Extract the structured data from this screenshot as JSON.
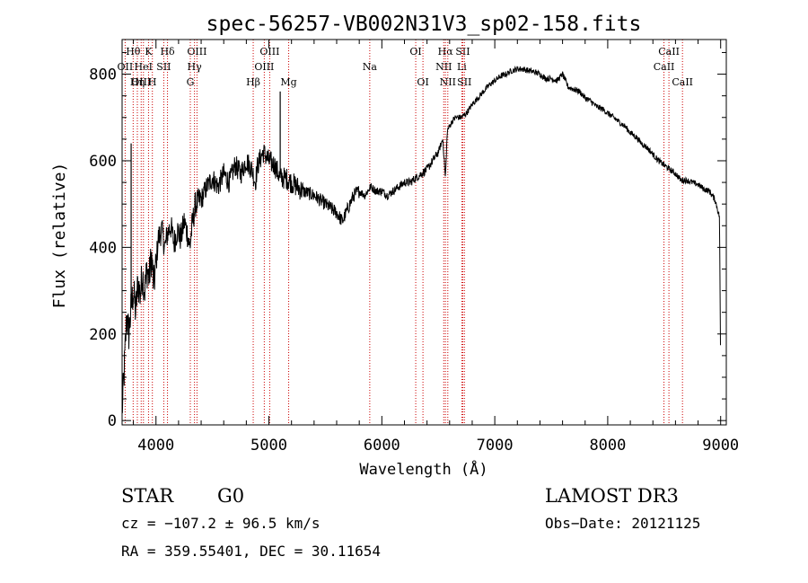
{
  "chart_data": {
    "type": "line",
    "title": "spec-56257-VB002N31V3_sp02-158.fits",
    "xlabel": "Wavelength (Å)",
    "ylabel": "Flux (relative)",
    "xlim": [
      3700,
      9050
    ],
    "ylim": [
      -10,
      880
    ],
    "x_ticks": [
      4000,
      5000,
      6000,
      7000,
      8000,
      9000
    ],
    "y_ticks": [
      0,
      200,
      400,
      600,
      800
    ],
    "grid": false,
    "line_color": "#000000",
    "marker_color": "#cc0000",
    "series": [
      {
        "name": "Flux",
        "points": [
          [
            3700,
            20
          ],
          [
            3720,
            120
          ],
          [
            3740,
            240
          ],
          [
            3760,
            200
          ],
          [
            3780,
            260
          ],
          [
            3800,
            300
          ],
          [
            3820,
            250
          ],
          [
            3840,
            320
          ],
          [
            3860,
            290
          ],
          [
            3880,
            340
          ],
          [
            3900,
            300
          ],
          [
            3920,
            350
          ],
          [
            3940,
            330
          ],
          [
            3960,
            380
          ],
          [
            3980,
            310
          ],
          [
            4000,
            360
          ],
          [
            4020,
            420
          ],
          [
            4050,
            440
          ],
          [
            4080,
            400
          ],
          [
            4100,
            430
          ],
          [
            4130,
            450
          ],
          [
            4160,
            410
          ],
          [
            4190,
            440
          ],
          [
            4220,
            420
          ],
          [
            4250,
            460
          ],
          [
            4280,
            430
          ],
          [
            4300,
            400
          ],
          [
            4320,
            450
          ],
          [
            4350,
            500
          ],
          [
            4400,
            510
          ],
          [
            4450,
            540
          ],
          [
            4500,
            560
          ],
          [
            4550,
            540
          ],
          [
            4600,
            570
          ],
          [
            4650,
            550
          ],
          [
            4700,
            590
          ],
          [
            4750,
            570
          ],
          [
            4800,
            600
          ],
          [
            4850,
            580
          ],
          [
            4880,
            550
          ],
          [
            4900,
            590
          ],
          [
            4950,
            620
          ],
          [
            5000,
            600
          ],
          [
            5050,
            590
          ],
          [
            5100,
            560
          ],
          [
            5150,
            560
          ],
          [
            5200,
            550
          ],
          [
            5250,
            540
          ],
          [
            5300,
            530
          ],
          [
            5400,
            520
          ],
          [
            5500,
            500
          ],
          [
            5550,
            490
          ],
          [
            5600,
            480
          ],
          [
            5650,
            460
          ],
          [
            5700,
            490
          ],
          [
            5750,
            520
          ],
          [
            5800,
            530
          ],
          [
            5850,
            520
          ],
          [
            5900,
            540
          ],
          [
            5950,
            530
          ],
          [
            6000,
            530
          ],
          [
            6050,
            520
          ],
          [
            6100,
            530
          ],
          [
            6150,
            540
          ],
          [
            6200,
            550
          ],
          [
            6250,
            550
          ],
          [
            6300,
            560
          ],
          [
            6350,
            570
          ],
          [
            6400,
            580
          ],
          [
            6450,
            600
          ],
          [
            6500,
            620
          ],
          [
            6540,
            650
          ],
          [
            6563,
            560
          ],
          [
            6580,
            670
          ],
          [
            6620,
            690
          ],
          [
            6650,
            700
          ],
          [
            6700,
            700
          ],
          [
            6750,
            710
          ],
          [
            6800,
            730
          ],
          [
            6850,
            745
          ],
          [
            6900,
            760
          ],
          [
            6950,
            775
          ],
          [
            7000,
            785
          ],
          [
            7050,
            795
          ],
          [
            7100,
            800
          ],
          [
            7150,
            808
          ],
          [
            7200,
            812
          ],
          [
            7250,
            812
          ],
          [
            7300,
            808
          ],
          [
            7350,
            805
          ],
          [
            7400,
            800
          ],
          [
            7450,
            790
          ],
          [
            7500,
            790
          ],
          [
            7550,
            785
          ],
          [
            7600,
            800
          ],
          [
            7650,
            770
          ],
          [
            7700,
            765
          ],
          [
            7750,
            760
          ],
          [
            7800,
            745
          ],
          [
            7850,
            738
          ],
          [
            7900,
            725
          ],
          [
            7950,
            720
          ],
          [
            8000,
            710
          ],
          [
            8050,
            700
          ],
          [
            8100,
            690
          ],
          [
            8150,
            680
          ],
          [
            8200,
            665
          ],
          [
            8250,
            655
          ],
          [
            8300,
            640
          ],
          [
            8350,
            630
          ],
          [
            8400,
            615
          ],
          [
            8450,
            600
          ],
          [
            8500,
            590
          ],
          [
            8550,
            580
          ],
          [
            8600,
            570
          ],
          [
            8650,
            555
          ],
          [
            8700,
            555
          ],
          [
            8750,
            550
          ],
          [
            8800,
            545
          ],
          [
            8850,
            535
          ],
          [
            8900,
            530
          ],
          [
            8950,
            510
          ],
          [
            8990,
            470
          ],
          [
            9000,
            100
          ]
        ]
      }
    ],
    "line_markers": [
      {
        "label": "Hθ",
        "wavelength": 3798,
        "row": 1
      },
      {
        "label": "OII",
        "wavelength": 3727,
        "row": 2
      },
      {
        "label": "OIII",
        "wavelength": 3869,
        "row": 3
      },
      {
        "label": "K",
        "wavelength": 3934,
        "row": 1
      },
      {
        "label": "HeI",
        "wavelength": 3889,
        "row": 2
      },
      {
        "label": "Hη",
        "wavelength": 3835,
        "row": 3
      },
      {
        "label": "Hδ",
        "wavelength": 4102,
        "row": 1
      },
      {
        "label": "SII",
        "wavelength": 4069,
        "row": 2
      },
      {
        "label": "H",
        "wavelength": 3968,
        "row": 3
      },
      {
        "label": "OIII",
        "wavelength": 4363,
        "row": 1
      },
      {
        "label": "Hγ",
        "wavelength": 4341,
        "row": 2
      },
      {
        "label": "G",
        "wavelength": 4304,
        "row": 3
      },
      {
        "label": "OIII",
        "wavelength": 5007,
        "row": 1
      },
      {
        "label": "OIII",
        "wavelength": 4959,
        "row": 2
      },
      {
        "label": "Hβ",
        "wavelength": 4861,
        "row": 3
      },
      {
        "label": "Mg",
        "wavelength": 5175,
        "row": 3
      },
      {
        "label": "Na",
        "wavelength": 5893,
        "row": 2
      },
      {
        "label": "OI",
        "wavelength": 6300,
        "row": 1
      },
      {
        "label": "OI",
        "wavelength": 6364,
        "row": 3
      },
      {
        "label": "Hα",
        "wavelength": 6563,
        "row": 1
      },
      {
        "label": "NII",
        "wavelength": 6548,
        "row": 2
      },
      {
        "label": "NII",
        "wavelength": 6584,
        "row": 3
      },
      {
        "label": "SII",
        "wavelength": 6717,
        "row": 1
      },
      {
        "label": "Li",
        "wavelength": 6708,
        "row": 2
      },
      {
        "label": "SII",
        "wavelength": 6731,
        "row": 3
      },
      {
        "label": "CaII",
        "wavelength": 8542,
        "row": 1
      },
      {
        "label": "CaII",
        "wavelength": 8498,
        "row": 2
      },
      {
        "label": "CaII",
        "wavelength": 8662,
        "row": 3
      }
    ]
  },
  "info": {
    "object_class": "STAR",
    "subclass": "G0",
    "survey": "LAMOST DR3",
    "redshift": "cz = −107.2 ± 96.5 km/s",
    "obs_date": "Obs−Date: 20121125",
    "coords": "RA = 359.55401, DEC =  30.11654"
  }
}
